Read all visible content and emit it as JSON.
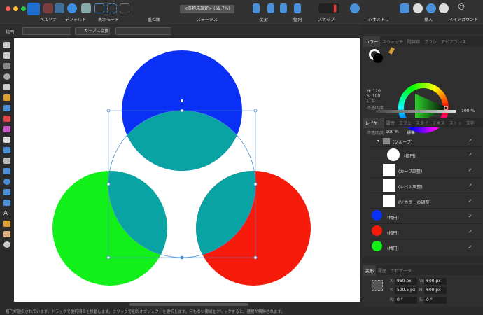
{
  "toolbar": {
    "persona": "ペルソナ",
    "default": "デフォルト",
    "view_mode": "表示モード",
    "arrange": "重ね順",
    "status": "ステータス",
    "status_value": "<名称未設定> (69.7%)",
    "transform": "変形",
    "align": "整列",
    "snap": "スナップ",
    "geometry": "ジオメトリ",
    "insert": "挿入",
    "account": "マイアカウント"
  },
  "context": {
    "object": "楕円",
    "convert_curve": "カーブに変換"
  },
  "color_panel": {
    "tabs": [
      "カラー",
      "スウォッチ",
      "階調線",
      "ブラシ",
      "アピアランス"
    ],
    "h": "H: 120",
    "s": "S: 100",
    "l": "L: 0",
    "opacity_label": "不透明度",
    "opacity": "100 %"
  },
  "layers_panel": {
    "tabs": [
      "レイヤー",
      "履歴",
      "エフェ",
      "スタイ",
      "テキス",
      "ストッ",
      "文字"
    ],
    "opacity_label": "不透明度:",
    "opacity": "100 %",
    "blend": "標準",
    "layers": [
      {
        "name": "(グループ)"
      },
      {
        "name": "(楕円)"
      },
      {
        "name": "(カーブ調整)"
      },
      {
        "name": "(レベル調整)"
      },
      {
        "name": "(ソカラーの調整)"
      },
      {
        "name": "(楕円)",
        "color": "#0a2ff5"
      },
      {
        "name": "(楕円)",
        "color": "#f51a0a"
      },
      {
        "name": "(楕円)",
        "color": "#12f01a"
      }
    ]
  },
  "transform_panel": {
    "tabs": [
      "変形",
      "履歴",
      "ナビゲータ"
    ],
    "x_label": "X:",
    "x": "960 px",
    "y_label": "Y:",
    "y": "599.5 px",
    "w_label": "W:",
    "w": "600 px",
    "h_label": "H:",
    "h": "600 px",
    "r_label": "R:",
    "r": "0 °",
    "s_label": "S:",
    "s": "0 °"
  },
  "status_bar": "楕円が選択されています。ドラッグで選択項目を移動します。クリックで別のオブジェクトを選択します。何もない領域をクリックすると、選択が解除されます。",
  "colors": {
    "blue": "#0a2ff5",
    "red": "#f51a0a",
    "green": "#12f01a",
    "teal": "#0aa3a3",
    "accent": "#2f8de4"
  }
}
